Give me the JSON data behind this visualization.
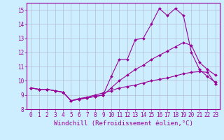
{
  "title": "",
  "xlabel": "Windchill (Refroidissement éolien,°C)",
  "ylabel": "",
  "background_color": "#cceeff",
  "grid_color": "#b0b0cc",
  "line_color": "#990099",
  "xlim": [
    -0.5,
    23.5
  ],
  "ylim": [
    8,
    15.5
  ],
  "xticks": [
    0,
    1,
    2,
    3,
    4,
    5,
    6,
    7,
    8,
    9,
    10,
    11,
    12,
    13,
    14,
    15,
    16,
    17,
    18,
    19,
    20,
    21,
    22,
    23
  ],
  "yticks": [
    8,
    9,
    10,
    11,
    12,
    13,
    14,
    15
  ],
  "line1_x": [
    0,
    1,
    2,
    3,
    4,
    5,
    6,
    7,
    8,
    9,
    10,
    11,
    12,
    13,
    14,
    15,
    16,
    17,
    18,
    19,
    20,
    21,
    22,
    23
  ],
  "line1_y": [
    9.5,
    9.4,
    9.4,
    9.3,
    9.2,
    8.6,
    8.7,
    8.8,
    8.9,
    9.0,
    10.3,
    11.5,
    11.5,
    12.9,
    13.0,
    14.0,
    15.1,
    14.6,
    15.1,
    14.6,
    12.0,
    10.8,
    10.3,
    9.9
  ],
  "line2_x": [
    0,
    1,
    2,
    3,
    4,
    5,
    6,
    7,
    8,
    9,
    10,
    11,
    12,
    13,
    14,
    15,
    16,
    17,
    18,
    19,
    20,
    21,
    22,
    23
  ],
  "line2_y": [
    9.5,
    9.4,
    9.4,
    9.3,
    9.2,
    8.6,
    8.7,
    8.8,
    8.9,
    9.0,
    9.5,
    10.0,
    10.4,
    10.8,
    11.1,
    11.5,
    11.8,
    12.1,
    12.4,
    12.7,
    12.5,
    11.3,
    10.8,
    10.4
  ],
  "line3_x": [
    0,
    1,
    2,
    3,
    4,
    5,
    6,
    7,
    8,
    9,
    10,
    11,
    12,
    13,
    14,
    15,
    16,
    17,
    18,
    19,
    20,
    21,
    22,
    23
  ],
  "line3_y": [
    9.5,
    9.4,
    9.4,
    9.3,
    9.2,
    8.6,
    8.75,
    8.85,
    9.0,
    9.15,
    9.3,
    9.5,
    9.6,
    9.7,
    9.85,
    10.0,
    10.1,
    10.2,
    10.35,
    10.5,
    10.6,
    10.65,
    10.6,
    9.8
  ],
  "tick_fontsize": 5.5,
  "xlabel_fontsize": 6.5,
  "linewidth": 0.8,
  "markersize": 2.0
}
